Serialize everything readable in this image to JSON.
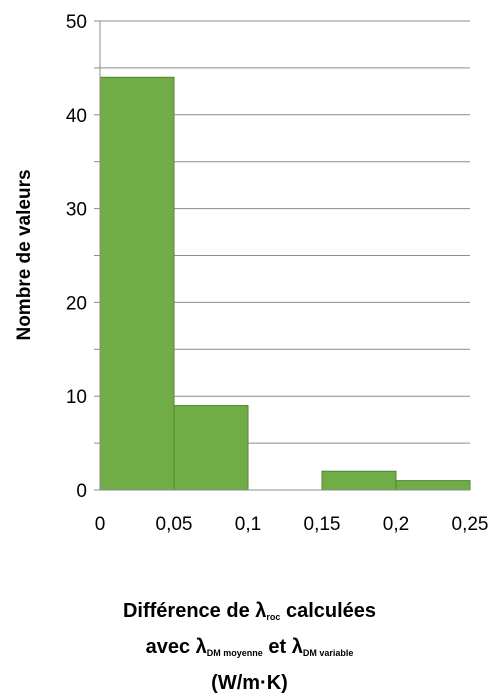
{
  "chart_data": {
    "type": "bar",
    "bin_edges": [
      0,
      0.05,
      0.1,
      0.15,
      0.2,
      0.25
    ],
    "values": [
      44,
      9,
      0,
      2,
      1
    ],
    "bar_color": "#70AD47",
    "bar_edge_color": "#548235",
    "xlim": [
      0,
      0.25
    ],
    "ylim": [
      0,
      50
    ],
    "x_ticks": [
      "0",
      "0,05",
      "0,1",
      "0,15",
      "0,2",
      "0,25"
    ],
    "y_ticks": [
      "0",
      "10",
      "20",
      "30",
      "40",
      "50"
    ],
    "y_minor_step": 5,
    "grid": true,
    "ylabel": "Nombre de valeurs",
    "xlabel": {
      "line1_prefix": "Différence de λ",
      "line1_sub": "roc",
      "line1_suffix": " calculées",
      "line2_prefix": "avec λ",
      "line2_sub1": "DM moyenne",
      "line2_mid": " et λ",
      "line2_sub2": "DM variable",
      "line3": "(W/m·K)"
    }
  }
}
